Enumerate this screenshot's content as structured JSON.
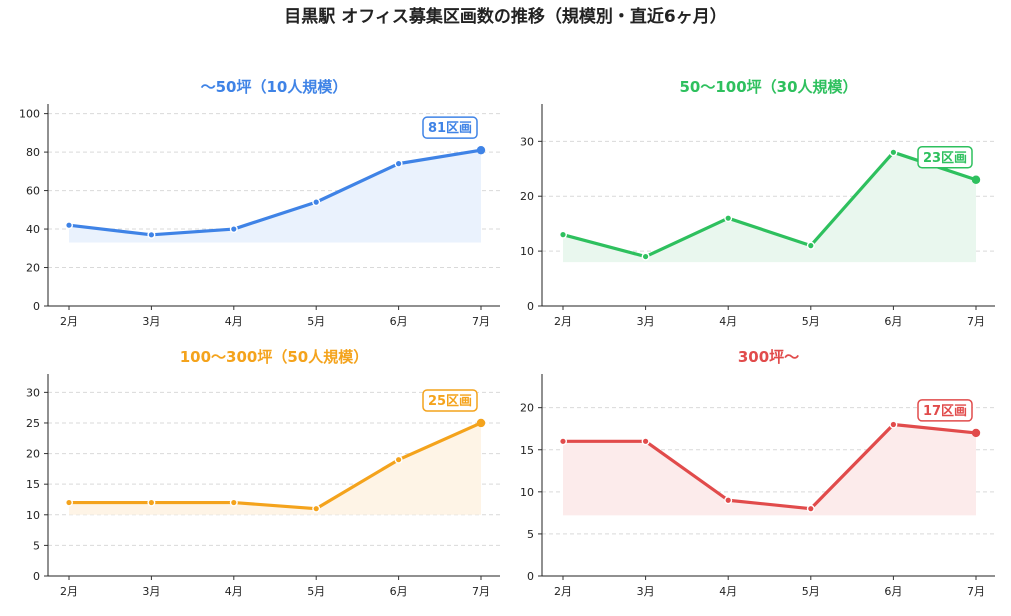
{
  "title": "目黒駅 オフィス募集区画数の推移（規模別・直近6ヶ月）",
  "chart_data": [
    {
      "type": "area",
      "title": "〜50坪（10人規模）",
      "color": "#3f83e6",
      "fill": "#eaf2fd",
      "categories": [
        "2月",
        "3月",
        "4月",
        "5月",
        "6月",
        "7月"
      ],
      "values": [
        42,
        37,
        40,
        54,
        74,
        81
      ],
      "ylim": [
        0,
        105
      ],
      "yticks": [
        0,
        20,
        40,
        60,
        80,
        100
      ],
      "fill_base": 33,
      "last_label": "81区画",
      "grid": true
    },
    {
      "type": "area",
      "title": "50〜100坪（30人規模）",
      "color": "#2ec05e",
      "fill": "#e9f7ee",
      "categories": [
        "2月",
        "3月",
        "4月",
        "5月",
        "6月",
        "7月"
      ],
      "values": [
        13,
        9,
        16,
        11,
        28,
        23
      ],
      "ylim": [
        0,
        36.8
      ],
      "yticks": [
        0,
        10,
        20,
        30
      ],
      "fill_base": 8,
      "last_label": "23区画",
      "grid": true
    },
    {
      "type": "area",
      "title": "100〜300坪（50人規模）",
      "color": "#f4a31c",
      "fill": "#fef4e6",
      "categories": [
        "2月",
        "3月",
        "4月",
        "5月",
        "6月",
        "7月"
      ],
      "values": [
        12,
        12,
        12,
        11,
        19,
        25
      ],
      "ylim": [
        0,
        33
      ],
      "yticks": [
        0,
        5,
        10,
        15,
        20,
        25,
        30
      ],
      "fill_base": 10,
      "last_label": "25区画",
      "grid": true
    },
    {
      "type": "area",
      "title": "300坪〜",
      "color": "#e14b4b",
      "fill": "#fcebeb",
      "categories": [
        "2月",
        "3月",
        "4月",
        "5月",
        "6月",
        "7月"
      ],
      "values": [
        16,
        16,
        9,
        8,
        18,
        17
      ],
      "ylim": [
        0,
        24
      ],
      "yticks": [
        0,
        5,
        10,
        15,
        20
      ],
      "fill_base": 7.2,
      "last_label": "17区画",
      "grid": true
    }
  ]
}
